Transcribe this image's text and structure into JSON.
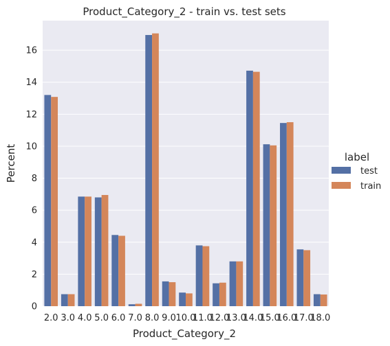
{
  "chart_data": {
    "type": "bar",
    "title": "Product_Category_2 - train vs. test sets",
    "xlabel": "Product_Category_2",
    "ylabel": "Percent",
    "categories": [
      "2.0",
      "3.0",
      "4.0",
      "5.0",
      "6.0",
      "7.0",
      "8.0",
      "9.0",
      "10.0",
      "11.0",
      "12.0",
      "13.0",
      "14.0",
      "15.0",
      "16.0",
      "17.0",
      "18.0"
    ],
    "series": [
      {
        "name": "test",
        "color": "#5470a5",
        "values": [
          13.2,
          0.75,
          6.85,
          6.8,
          4.45,
          0.12,
          16.95,
          1.55,
          0.85,
          3.8,
          1.43,
          2.8,
          14.72,
          10.12,
          11.45,
          3.55,
          0.75
        ]
      },
      {
        "name": "train",
        "color": "#d4865a",
        "values": [
          13.08,
          0.75,
          6.85,
          6.95,
          4.4,
          0.15,
          17.05,
          1.5,
          0.8,
          3.75,
          1.47,
          2.8,
          14.65,
          10.05,
          11.5,
          3.5,
          0.73
        ]
      }
    ],
    "ylim": [
      0,
      17.85
    ],
    "yticks": [
      0,
      2,
      4,
      6,
      8,
      10,
      12,
      14,
      16
    ],
    "grid": true,
    "legend": {
      "title": "label",
      "placement": "right"
    },
    "style": {
      "plot_background": "#eaeaf2",
      "grid_color": "#ffffff"
    }
  }
}
